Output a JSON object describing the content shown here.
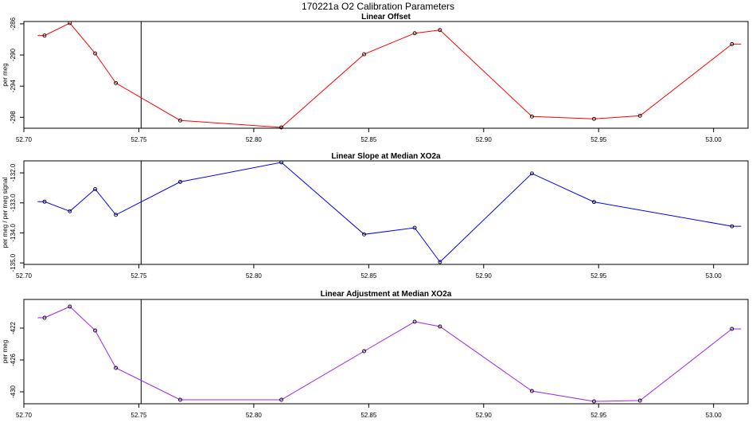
{
  "title": "170221a   O2 Calibration Parameters",
  "chart_data": [
    {
      "type": "line",
      "title": "Linear Offset",
      "xlabel": "",
      "ylabel": "per meg",
      "color": "#ff0000",
      "xlim": [
        52.7,
        53.015
      ],
      "ylim": [
        -299.4,
        -285.7
      ],
      "xticks": [
        52.7,
        52.75,
        52.8,
        52.85,
        52.9,
        52.95,
        53.0
      ],
      "xtick_labels": [
        "52.70",
        "52.75",
        "52.80",
        "52.85",
        "52.90",
        "52.95",
        "53.00"
      ],
      "yticks": [
        -286,
        -290,
        -294,
        -298
      ],
      "ytick_labels": [
        "-286",
        "-290",
        "-294",
        "-298"
      ],
      "vline_x": 52.751,
      "grid": false,
      "x": [
        52.709,
        52.72,
        52.731,
        52.74,
        52.768,
        52.812,
        52.848,
        52.87,
        52.881,
        52.921,
        52.948,
        52.968,
        53.008
      ],
      "y": [
        -287.5,
        -285.9,
        -289.8,
        -293.6,
        -298.4,
        -299.3,
        -289.9,
        -287.2,
        -286.8,
        -297.9,
        -298.2,
        -297.8,
        -288.6
      ],
      "lead_in": {
        "x": 52.706,
        "y": -287.5
      },
      "tail": {
        "x": 53.012,
        "y": -288.6
      }
    },
    {
      "type": "line",
      "title": "Linear Slope at Median XO2a",
      "xlabel": "",
      "ylabel": "per meg / per meg signal",
      "color": "#0000ff",
      "xlim": [
        52.7,
        53.015
      ],
      "ylim": [
        -135.05,
        -131.6
      ],
      "xticks": [
        52.7,
        52.75,
        52.8,
        52.85,
        52.9,
        52.95,
        53.0
      ],
      "xtick_labels": [
        "52.70",
        "52.75",
        "52.80",
        "52.85",
        "52.90",
        "52.95",
        "53.00"
      ],
      "yticks": [
        -132.0,
        -133.0,
        -134.0,
        -135.0
      ],
      "ytick_labels": [
        "-132.0",
        "-133.0",
        "-134.0",
        "-135.0"
      ],
      "vline_x": 52.751,
      "grid": false,
      "x": [
        52.709,
        52.72,
        52.731,
        52.74,
        52.768,
        52.812,
        52.848,
        52.87,
        52.881,
        52.921,
        52.948,
        53.008
      ],
      "y": [
        -132.96,
        -133.28,
        -132.54,
        -133.4,
        -132.3,
        -131.65,
        -134.05,
        -133.83,
        -134.97,
        -132.02,
        -132.97,
        -133.78
      ],
      "lead_in": {
        "x": 52.706,
        "y": -132.96
      },
      "tail": {
        "x": 53.012,
        "y": -133.78
      }
    },
    {
      "type": "line",
      "title": "Linear Adjustment at Median XO2a",
      "xlabel": "",
      "ylabel": "per meg",
      "color": "#a020f0",
      "xlim": [
        52.7,
        53.015
      ],
      "ylim": [
        -431.5,
        -418.4
      ],
      "xticks": [
        52.7,
        52.75,
        52.8,
        52.85,
        52.9,
        52.95,
        53.0
      ],
      "xtick_labels": [
        "52.70",
        "52.75",
        "52.80",
        "52.85",
        "52.90",
        "52.95",
        "53.00"
      ],
      "yticks": [
        -422,
        -426,
        -430
      ],
      "ytick_labels": [
        "-422",
        "-426",
        "-430"
      ],
      "vline_x": 52.751,
      "grid": false,
      "x": [
        52.709,
        52.72,
        52.731,
        52.74,
        52.768,
        52.812,
        52.848,
        52.87,
        52.881,
        52.921,
        52.948,
        52.968,
        53.008
      ],
      "y": [
        -420.7,
        -419.3,
        -422.3,
        -427.0,
        -431.0,
        -431.0,
        -424.9,
        -421.2,
        -421.8,
        -429.9,
        -431.2,
        -431.1,
        -422.1
      ],
      "lead_in": {
        "x": 52.706,
        "y": -420.7
      },
      "tail": {
        "x": 53.012,
        "y": -422.1
      }
    }
  ]
}
